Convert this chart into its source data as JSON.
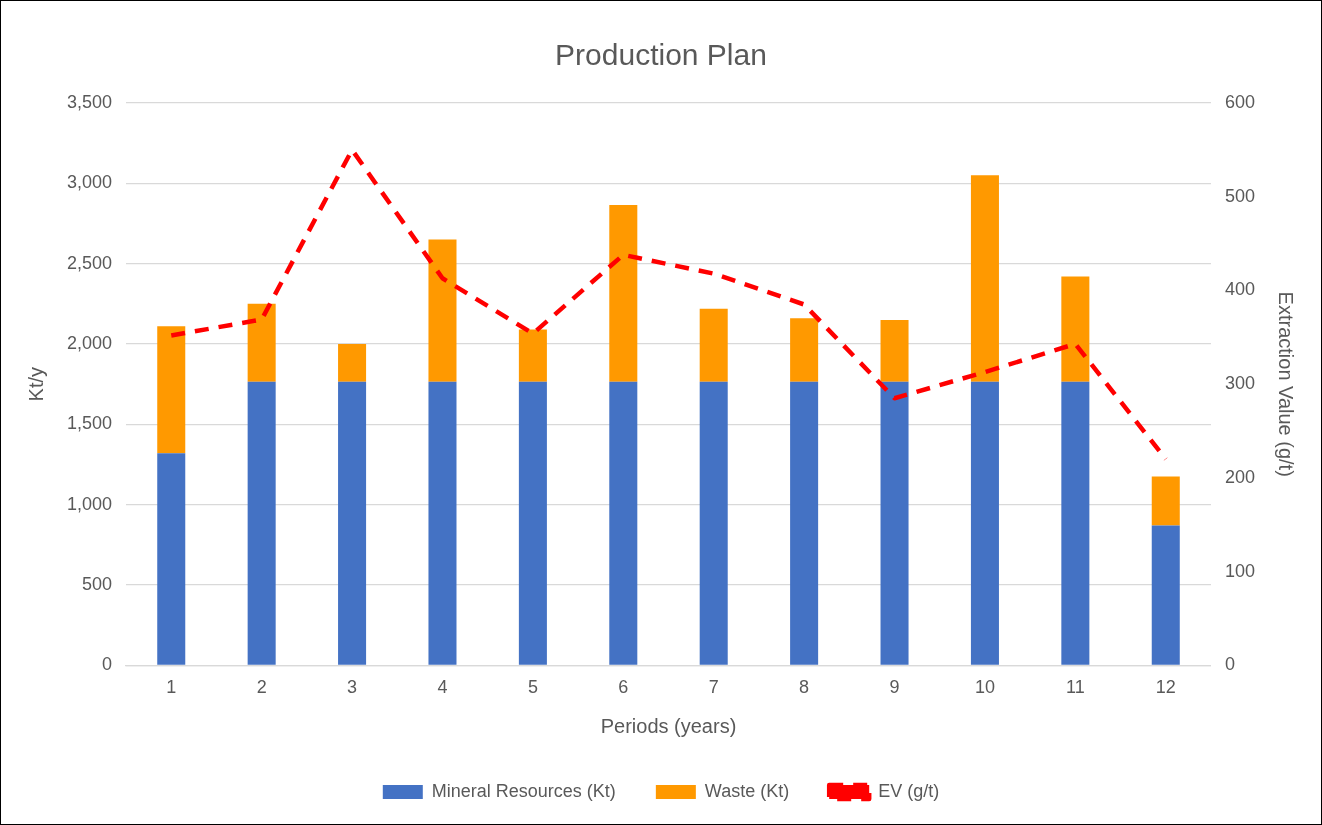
{
  "chart_data": {
    "type": "bar",
    "title": "Production Plan",
    "xlabel": "Periods (years)",
    "ylabel": "Kt/y",
    "y2label": "Extraction Value (g/t)",
    "x": [
      1,
      2,
      3,
      4,
      5,
      6,
      7,
      8,
      9,
      10,
      11,
      12
    ],
    "xlim": [
      0.5,
      12.5
    ],
    "xticks": [
      1,
      2,
      3,
      4,
      5,
      6,
      7,
      8,
      9,
      10,
      11,
      12
    ],
    "stacked": true,
    "series": [
      {
        "name": "Mineral Resources (Kt)",
        "type": "bar",
        "color": "#4472c4",
        "values": [
          1320,
          1765,
          1765,
          1765,
          1765,
          1765,
          1765,
          1765,
          1765,
          1765,
          1765,
          870
        ]
      },
      {
        "name": "Waste (Kt)",
        "type": "bar",
        "color": "#ff9900",
        "values": [
          790,
          485,
          235,
          885,
          325,
          1100,
          455,
          395,
          385,
          1285,
          655,
          305
        ]
      },
      {
        "name": "EV (g/t)",
        "type": "line",
        "axis": "y2",
        "color": "#ff0000",
        "line_style": "dashed",
        "marker": "none",
        "values": [
          352,
          369,
          550,
          413,
          354,
          438,
          418,
          385,
          285,
          313,
          343,
          220
        ]
      }
    ],
    "ylim": [
      0,
      3500
    ],
    "yticks": [
      {
        "value": 0,
        "label": "0"
      },
      {
        "value": 500,
        "label": "500"
      },
      {
        "value": 1000,
        "label": "1,000"
      },
      {
        "value": 1500,
        "label": "1,500"
      },
      {
        "value": 2000,
        "label": "2,000"
      },
      {
        "value": 2500,
        "label": "2,500"
      },
      {
        "value": 3000,
        "label": "3,000"
      },
      {
        "value": 3500,
        "label": "3,500"
      }
    ],
    "y2lim": [
      0,
      600
    ],
    "y2ticks": [
      0,
      100,
      200,
      300,
      400,
      500,
      600
    ],
    "grid": "y",
    "legend": "bottom"
  }
}
